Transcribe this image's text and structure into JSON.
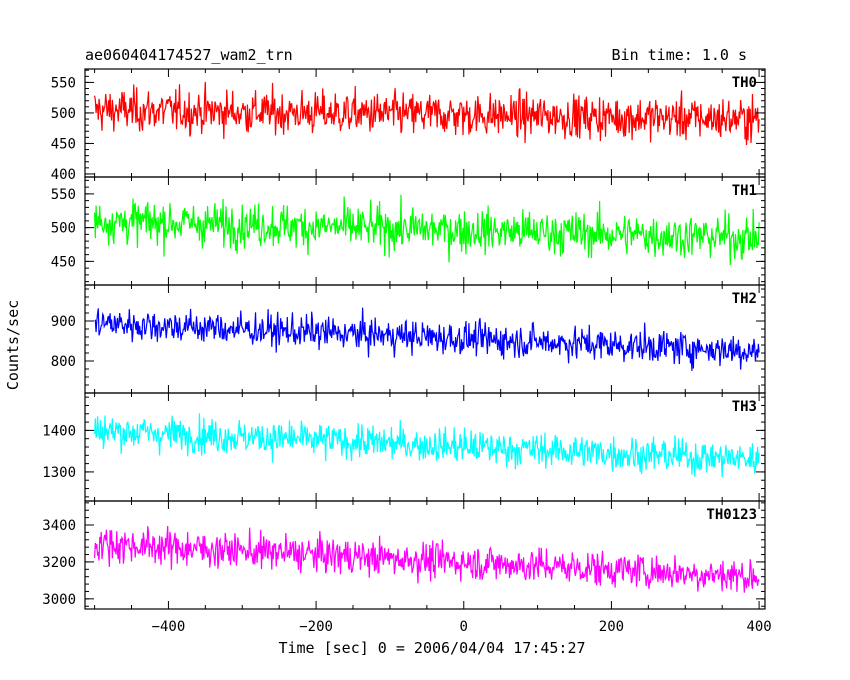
{
  "header": {
    "title": "ae060404174527_wam2_trn",
    "bin_time": "Bin time: 1.0 s"
  },
  "chart_data": {
    "type": "line",
    "title": "ae060404174527_wam2_trn",
    "subtitle": "Bin time: 1.0 s",
    "xlabel": "Time [sec] 0 = 2006/04/04 17:45:27",
    "ylabel": "Counts/sec",
    "xlim": [
      -513,
      408
    ],
    "x_ticks": [
      -400,
      -200,
      0,
      200,
      400
    ],
    "x_range_data": [
      -500,
      400
    ],
    "bin_seconds": 1.0,
    "panels": [
      {
        "name": "TH0",
        "color": "#ff0000",
        "ylim": [
          395,
          572
        ],
        "y_ticks": [
          400,
          450,
          500,
          550
        ],
        "approx_mean_start": 505,
        "approx_mean_end": 490,
        "approx_noise_range": 55
      },
      {
        "name": "TH1",
        "color": "#00ff00",
        "ylim": [
          415,
          575
        ],
        "y_ticks": [
          450,
          500,
          550
        ],
        "approx_mean_start": 510,
        "approx_mean_end": 485,
        "approx_noise_range": 50
      },
      {
        "name": "TH2",
        "color": "#0000ff",
        "ylim": [
          720,
          990
        ],
        "y_ticks": [
          800,
          900
        ],
        "approx_mean_start": 895,
        "approx_mean_end": 825,
        "approx_noise_range": 65
      },
      {
        "name": "TH3",
        "color": "#00ffff",
        "ylim": [
          1230,
          1490
        ],
        "y_ticks": [
          1300,
          1400
        ],
        "approx_mean_start": 1400,
        "approx_mean_end": 1330,
        "approx_noise_range": 65
      },
      {
        "name": "TH0123",
        "color": "#ff00ff",
        "ylim": [
          2945,
          3530
        ],
        "y_ticks": [
          3000,
          3200,
          3400
        ],
        "approx_mean_start": 3300,
        "approx_mean_end": 3120,
        "approx_noise_range": 150
      }
    ]
  }
}
